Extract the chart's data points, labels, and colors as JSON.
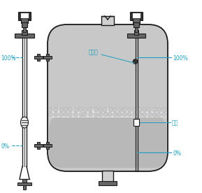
{
  "bg_color": "#ffffff",
  "tank_color": "#d0d0d0",
  "tank_fill_color": "#c8c8c8",
  "liquid_color": "#b8b8b8",
  "foam_dot_color": "#c8c8c8",
  "foam_bg_color": "#e0e0e0",
  "line_color": "#1a1a1a",
  "dark_color": "#333333",
  "mid_color": "#666666",
  "annotation_color": "#1a9fc0",
  "label_100_left": "100%",
  "label_0_left": "0%",
  "label_100_right": "100%",
  "label_0_right": "0%",
  "label_tiaoyakong": "调压孔",
  "label_liquid": "液面",
  "figsize": [
    2.89,
    2.76
  ],
  "dpi": 100
}
